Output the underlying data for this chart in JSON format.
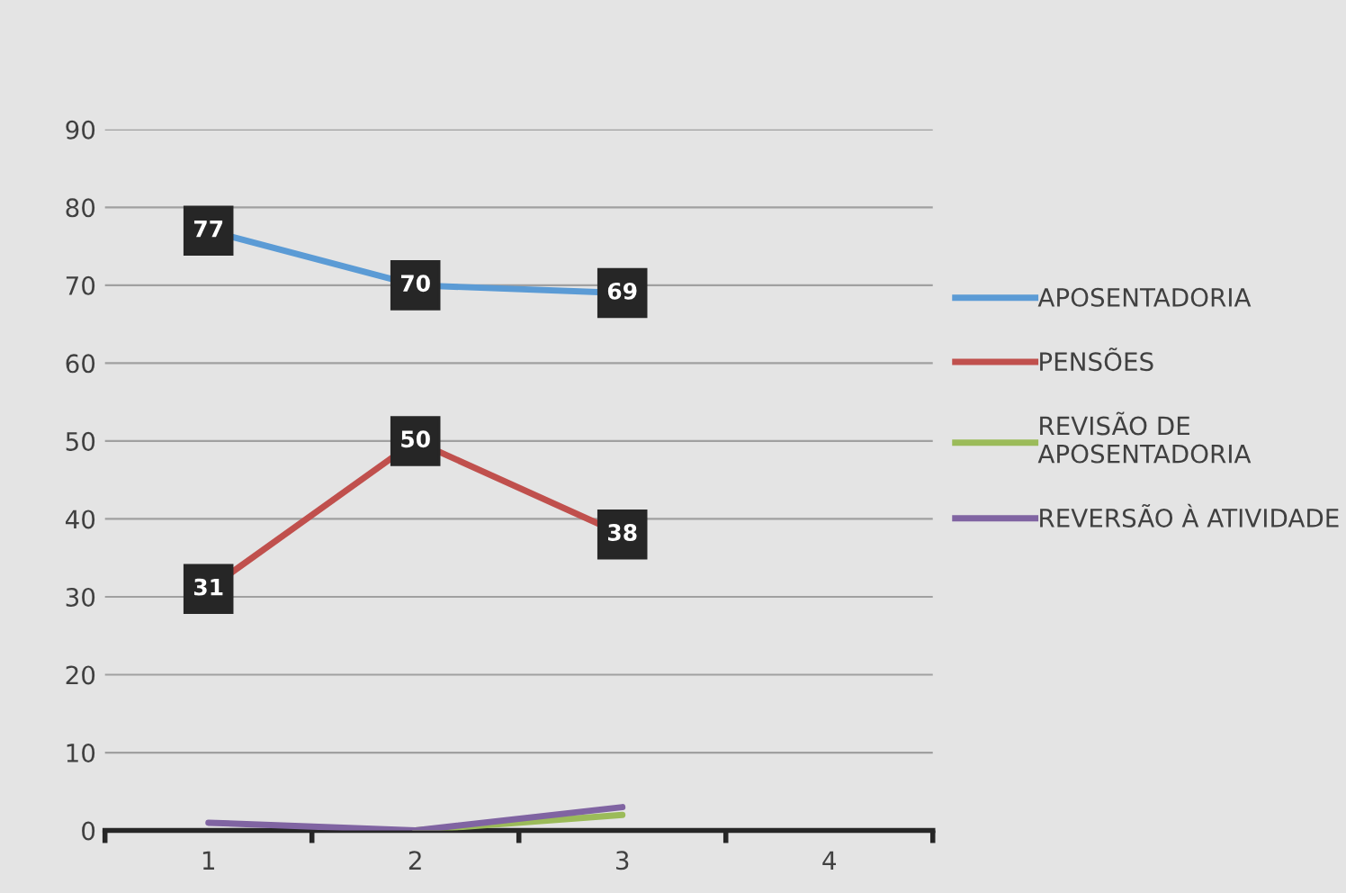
{
  "chart_data": {
    "type": "line",
    "categories": [
      "1",
      "2",
      "3",
      "4"
    ],
    "series": [
      {
        "name": "APOSENTADORIA",
        "color": "#5b9bd5",
        "values": [
          77,
          70,
          69,
          null
        ],
        "marker": "square",
        "value_labels": [
          "77",
          "70",
          "69",
          null
        ]
      },
      {
        "name": "PENSÕES",
        "color": "#c0504d",
        "values": [
          31,
          50,
          38,
          null
        ],
        "marker": "square",
        "value_labels": [
          "31",
          "50",
          "38",
          null
        ]
      },
      {
        "name": "REVISÃO DE\nAPOSENTADORIA",
        "color": "#9bbb59",
        "values": [
          null,
          0,
          2,
          null
        ]
      },
      {
        "name": "REVERSÃO À ATIVIDADE",
        "color": "#8064a2",
        "values": [
          1,
          0,
          3,
          null
        ]
      }
    ],
    "ylim": [
      0,
      90
    ],
    "yticks": [
      0,
      10,
      20,
      30,
      40,
      50,
      60,
      70,
      80,
      90
    ],
    "grid": "y",
    "legend": "right",
    "line_style": "solid"
  }
}
